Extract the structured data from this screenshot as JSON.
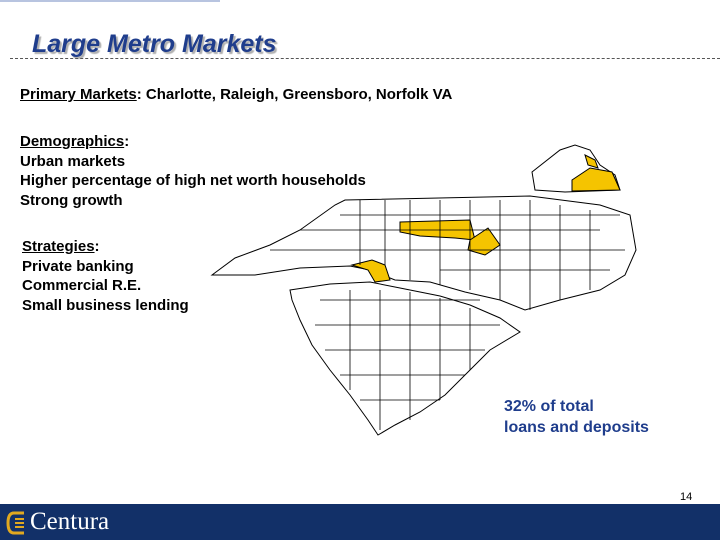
{
  "header": {
    "title": "Large Metro Markets"
  },
  "primary_markets": {
    "label": "Primary Markets",
    "text": ": Charlotte, Raleigh, Greensboro, Norfolk VA"
  },
  "demographics": {
    "label": "Demographics",
    "suffix": ":",
    "items": [
      "Urban markets",
      "Higher percentage of high net worth households",
      "Strong growth"
    ]
  },
  "strategies": {
    "label": "Strategies",
    "suffix": ":",
    "items": [
      "Private banking",
      "Commercial R.E.",
      "Small business lending"
    ]
  },
  "callout": [
    "32% of total",
    "loans and deposits"
  ],
  "page_number": "14",
  "footer": {
    "logo": "Centura"
  }
}
